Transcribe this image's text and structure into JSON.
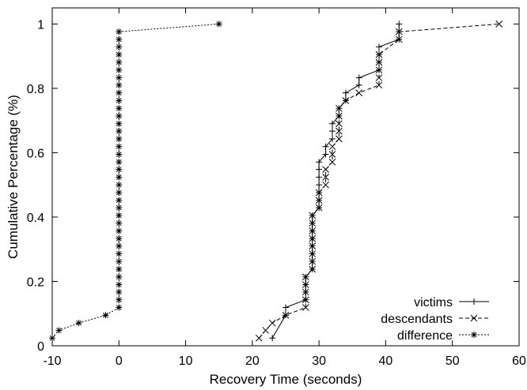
{
  "chart_data": {
    "type": "line",
    "title": "",
    "xlabel": "Recovery Time (seconds)",
    "ylabel": "Cumulative Percentage (%)",
    "xlim": [
      -10,
      60
    ],
    "ylim": [
      0,
      1.05
    ],
    "xticks": [
      "-10",
      "0",
      "10",
      "20",
      "30",
      "40",
      "50",
      "60"
    ],
    "yticks": [
      "0",
      "0.2",
      "0.4",
      "0.6",
      "0.8",
      "1"
    ],
    "grid": false,
    "legend_position": "bottom-right",
    "series": [
      {
        "name": "victims",
        "style": "solid",
        "marker": "plus",
        "points": [
          [
            23,
            0.024
          ],
          [
            25,
            0.095
          ],
          [
            25,
            0.119
          ],
          [
            28,
            0.143
          ],
          [
            28,
            0.167
          ],
          [
            28,
            0.19
          ],
          [
            28,
            0.214
          ],
          [
            29,
            0.238
          ],
          [
            29,
            0.262
          ],
          [
            29,
            0.286
          ],
          [
            29,
            0.31
          ],
          [
            29,
            0.333
          ],
          [
            29,
            0.357
          ],
          [
            29,
            0.381
          ],
          [
            29,
            0.405
          ],
          [
            30,
            0.429
          ],
          [
            30,
            0.452
          ],
          [
            30,
            0.476
          ],
          [
            30,
            0.5
          ],
          [
            30,
            0.524
          ],
          [
            30,
            0.548
          ],
          [
            30,
            0.571
          ],
          [
            31,
            0.595
          ],
          [
            31,
            0.619
          ],
          [
            32,
            0.643
          ],
          [
            32,
            0.667
          ],
          [
            32,
            0.69
          ],
          [
            33,
            0.714
          ],
          [
            33,
            0.738
          ],
          [
            34,
            0.762
          ],
          [
            34,
            0.786
          ],
          [
            36,
            0.81
          ],
          [
            36,
            0.833
          ],
          [
            39,
            0.857
          ],
          [
            39,
            0.881
          ],
          [
            39,
            0.905
          ],
          [
            39,
            0.929
          ],
          [
            42,
            0.952
          ],
          [
            42,
            0.976
          ],
          [
            42,
            1.0
          ]
        ]
      },
      {
        "name": "descendants",
        "style": "dashed",
        "marker": "x",
        "points": [
          [
            21,
            0.024
          ],
          [
            22,
            0.048
          ],
          [
            23,
            0.071
          ],
          [
            25,
            0.095
          ],
          [
            28,
            0.119
          ],
          [
            28,
            0.143
          ],
          [
            28,
            0.167
          ],
          [
            28,
            0.19
          ],
          [
            28,
            0.214
          ],
          [
            29,
            0.238
          ],
          [
            29,
            0.262
          ],
          [
            29,
            0.286
          ],
          [
            29,
            0.31
          ],
          [
            29,
            0.333
          ],
          [
            29,
            0.357
          ],
          [
            29,
            0.381
          ],
          [
            29,
            0.405
          ],
          [
            30,
            0.429
          ],
          [
            30,
            0.452
          ],
          [
            30,
            0.476
          ],
          [
            31,
            0.5
          ],
          [
            31,
            0.524
          ],
          [
            31,
            0.548
          ],
          [
            32,
            0.571
          ],
          [
            32,
            0.595
          ],
          [
            32,
            0.619
          ],
          [
            33,
            0.643
          ],
          [
            33,
            0.667
          ],
          [
            33,
            0.69
          ],
          [
            33,
            0.714
          ],
          [
            33,
            0.738
          ],
          [
            34,
            0.762
          ],
          [
            36,
            0.786
          ],
          [
            39,
            0.81
          ],
          [
            39,
            0.833
          ],
          [
            39,
            0.857
          ],
          [
            39,
            0.881
          ],
          [
            39,
            0.905
          ],
          [
            42,
            0.952
          ],
          [
            42,
            0.976
          ],
          [
            57,
            1.0
          ]
        ]
      },
      {
        "name": "difference",
        "style": "dotted",
        "marker": "star",
        "points": [
          [
            -10,
            0.024
          ],
          [
            -9,
            0.048
          ],
          [
            -6,
            0.071
          ],
          [
            -2,
            0.095
          ],
          [
            0,
            0.119
          ],
          [
            0,
            0.143
          ],
          [
            0,
            0.167
          ],
          [
            0,
            0.19
          ],
          [
            0,
            0.214
          ],
          [
            0,
            0.238
          ],
          [
            0,
            0.262
          ],
          [
            0,
            0.286
          ],
          [
            0,
            0.31
          ],
          [
            0,
            0.333
          ],
          [
            0,
            0.357
          ],
          [
            0,
            0.381
          ],
          [
            0,
            0.405
          ],
          [
            0,
            0.429
          ],
          [
            0,
            0.452
          ],
          [
            0,
            0.476
          ],
          [
            0,
            0.5
          ],
          [
            0,
            0.524
          ],
          [
            0,
            0.548
          ],
          [
            0,
            0.571
          ],
          [
            0,
            0.595
          ],
          [
            0,
            0.619
          ],
          [
            0,
            0.643
          ],
          [
            0,
            0.667
          ],
          [
            0,
            0.69
          ],
          [
            0,
            0.714
          ],
          [
            0,
            0.738
          ],
          [
            0,
            0.762
          ],
          [
            0,
            0.786
          ],
          [
            0,
            0.81
          ],
          [
            0,
            0.833
          ],
          [
            0,
            0.857
          ],
          [
            0,
            0.881
          ],
          [
            0,
            0.905
          ],
          [
            0,
            0.929
          ],
          [
            0,
            0.952
          ],
          [
            0,
            0.976
          ],
          [
            15,
            1.0
          ]
        ]
      }
    ]
  }
}
